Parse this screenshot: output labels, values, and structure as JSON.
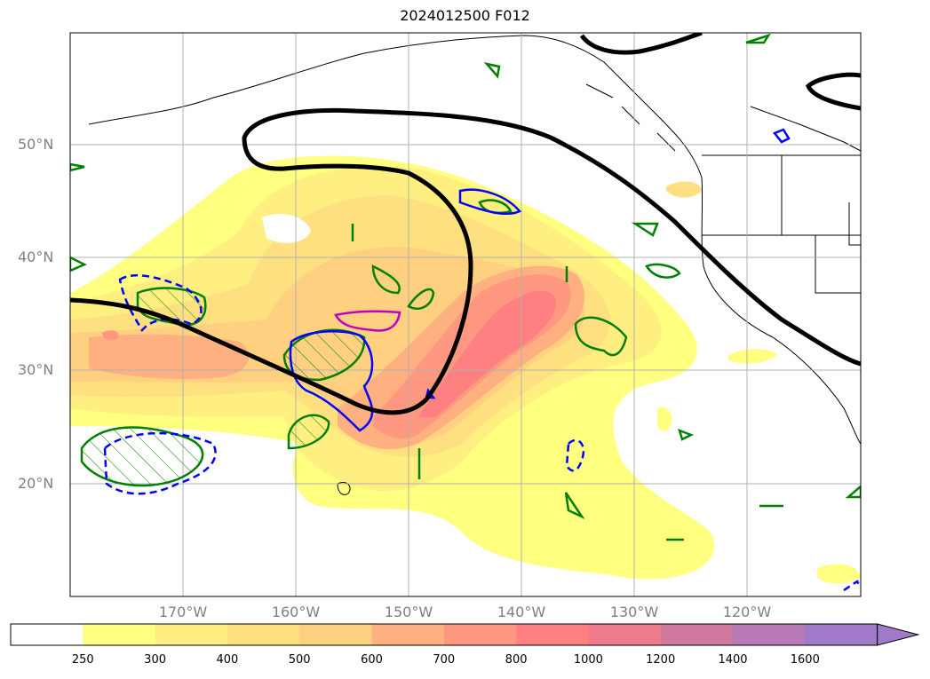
{
  "title": "2024012500 F012",
  "lat_labels": [
    "50°N",
    "40°N",
    "30°N",
    "20°N"
  ],
  "lon_labels": [
    "170°W",
    "160°W",
    "150°W",
    "140°W",
    "130°W",
    "120°W"
  ],
  "colorbar": {
    "ticks": [
      "250",
      "300",
      "400",
      "500",
      "600",
      "700",
      "800",
      "1000",
      "1200",
      "1400",
      "1600"
    ],
    "colors": [
      "#ffffff",
      "#ffff80",
      "#ffee80",
      "#ffe080",
      "#ffd080",
      "#ffb080",
      "#ff9880",
      "#ff8080",
      "#ee7a8a",
      "#d07aa0",
      "#b87ab8",
      "#a07ac8"
    ],
    "extend": "max"
  },
  "colors": {
    "contour_black": "#000000",
    "contour_green": "#008000",
    "contour_blue": "#0000ff",
    "contour_magenta": "#c000c0",
    "coast": "#000000",
    "grid": "#b0b0b0"
  }
}
